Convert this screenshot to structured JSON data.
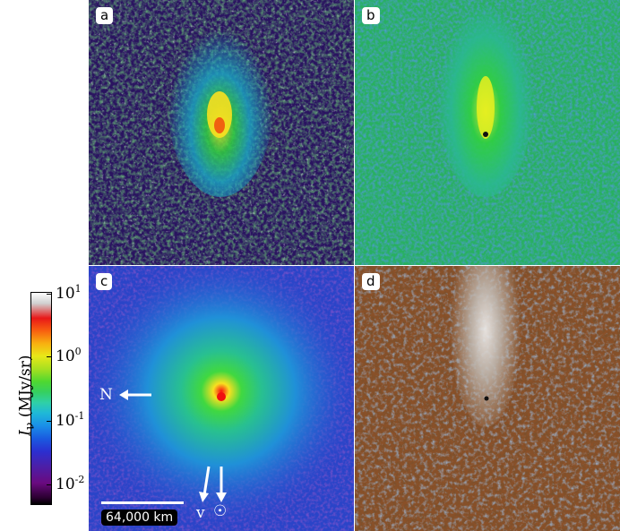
{
  "panels": {
    "a": {
      "label": "a"
    },
    "b": {
      "label": "b"
    },
    "c": {
      "label": "c"
    },
    "d": {
      "label": "d"
    }
  },
  "colorbar": {
    "axis_label": "I",
    "axis_label_sub": "ν",
    "axis_label_units": " (MJy/sr)",
    "ticks": [
      {
        "base": "10",
        "exp": "1"
      },
      {
        "base": "10",
        "exp": "0"
      },
      {
        "base": "10",
        "exp": "-1"
      },
      {
        "base": "10",
        "exp": "-2"
      }
    ]
  },
  "annotations": {
    "north": "N",
    "velocity": "v",
    "sun": "☉",
    "scale": "64,000 km"
  },
  "colors": {
    "panel_a_bg": "#3a1a7a",
    "panel_b_bg": "#2a9a9a",
    "panel_c_bg": "#2a3ec8",
    "panel_d_bg": "#7a4a2a"
  }
}
